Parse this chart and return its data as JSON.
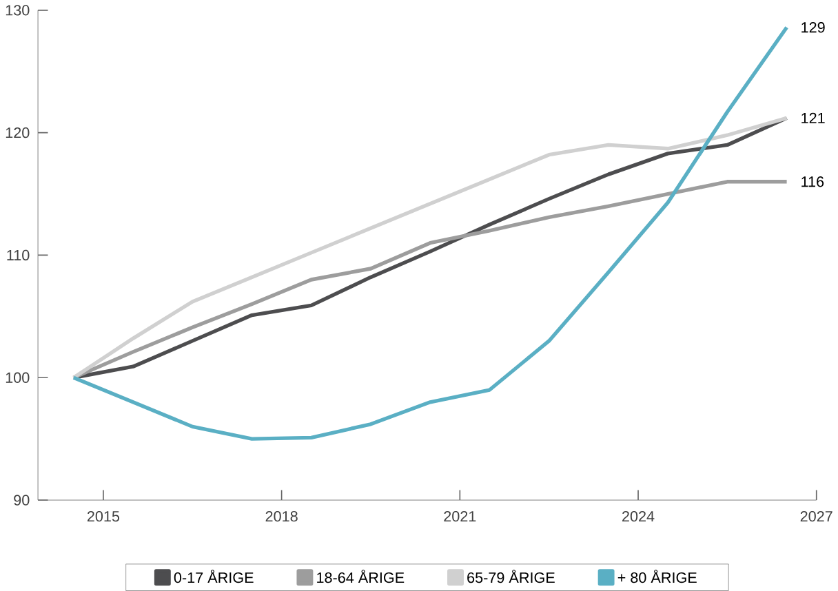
{
  "chart_data": {
    "type": "line",
    "x": [
      2014.5,
      2015.5,
      2016.5,
      2017.5,
      2018.5,
      2019.5,
      2020.5,
      2021.5,
      2022.5,
      2023.5,
      2024.5,
      2025.5,
      2026.5
    ],
    "series": [
      {
        "name": "0-17 ÅRIGE",
        "color": "#4d4d4f",
        "values": [
          100,
          100.9,
          103,
          105.1,
          105.9,
          108.2,
          110.3,
          112.5,
          114.6,
          116.6,
          118.3,
          119,
          121.2
        ],
        "value_labels": [
          null,
          null,
          null,
          null,
          null,
          null,
          null,
          null,
          null,
          null,
          null,
          null,
          "121"
        ]
      },
      {
        "name": "18-64 ÅRIGE",
        "color": "#9d9d9d",
        "values": [
          100,
          102.1,
          104.1,
          106,
          108,
          108.9,
          111,
          112,
          113.1,
          114,
          115,
          116,
          116
        ],
        "value_labels": [
          null,
          null,
          null,
          null,
          null,
          null,
          null,
          null,
          null,
          null,
          null,
          null,
          "116"
        ]
      },
      {
        "name": "65-79 ÅRIGE",
        "color": "#d0d0d0",
        "values": [
          100,
          103.2,
          106.2,
          108.2,
          110.2,
          112.2,
          114.2,
          116.2,
          118.2,
          119,
          118.7,
          119.8,
          121.2
        ]
      },
      {
        "name": "+ 80 ÅRIGE",
        "color": "#5aafc4",
        "values": [
          100,
          98,
          96,
          95,
          95.1,
          96.2,
          98,
          99,
          103,
          108.6,
          114.3,
          121.7,
          128.6
        ],
        "value_labels": [
          null,
          null,
          null,
          null,
          null,
          null,
          null,
          null,
          null,
          null,
          null,
          null,
          "129"
        ]
      }
    ],
    "xlim": [
      2013.9,
      2027
    ],
    "ylim": [
      90,
      130
    ],
    "xticks": [
      2015,
      2018,
      2021,
      2024,
      2027
    ],
    "yticks": [
      90,
      100,
      110,
      120,
      130
    ],
    "legend": "bottom",
    "grid": false,
    "line_style": "solid",
    "marker": "none"
  }
}
